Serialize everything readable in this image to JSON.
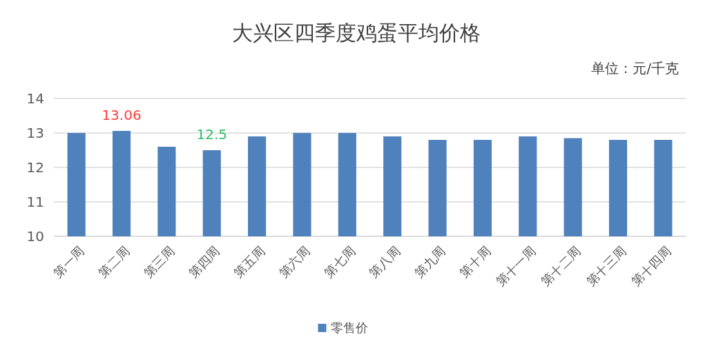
{
  "chart_data": {
    "type": "bar",
    "title": "大兴区四季度鸡蛋平均价格",
    "subtitle": "单位：元/千克",
    "categories": [
      "第一周",
      "第二周",
      "第三周",
      "第四周",
      "第五周",
      "第六周",
      "第七周",
      "第八周",
      "第九周",
      "第十周",
      "第十一周",
      "第十二周",
      "第十三周",
      "第十四周"
    ],
    "series": [
      {
        "name": "零售价",
        "color": "#4f81bd",
        "values": [
          13.0,
          13.06,
          12.6,
          12.5,
          12.9,
          13.0,
          13.0,
          12.9,
          12.8,
          12.8,
          12.9,
          12.85,
          12.8,
          12.8
        ],
        "value_labels": [
          null,
          "13.06",
          null,
          "12.5",
          null,
          null,
          null,
          null,
          null,
          null,
          null,
          null,
          null,
          null
        ]
      }
    ],
    "ylim": [
      10,
      14
    ],
    "yticks": [
      10,
      11,
      12,
      13,
      14
    ],
    "grid": "y",
    "legend": "bottom"
  }
}
